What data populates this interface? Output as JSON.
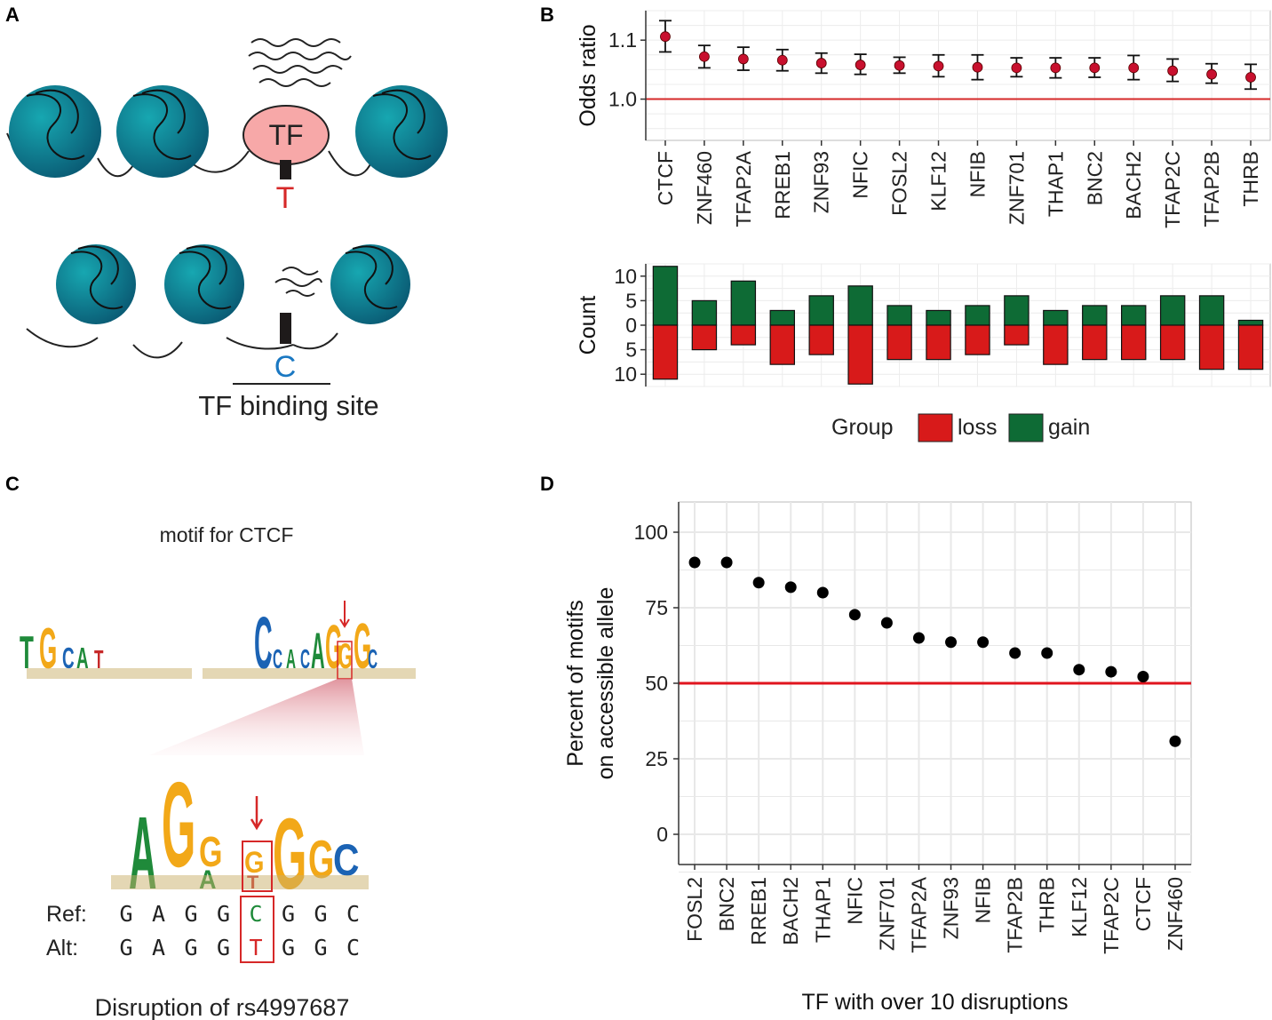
{
  "panels": {
    "a": "A",
    "b": "B",
    "c": "C",
    "d": "D"
  },
  "panelA": {
    "tf_label": "TF",
    "allele_top": "T",
    "allele_bottom": "C",
    "binding_site_label": "TF binding site",
    "colors": {
      "nucleosome": "#0f8a96",
      "tf": "#f7a8a8",
      "allele_t": "#d62828",
      "allele_c": "#1a78c2"
    }
  },
  "panelB": {
    "odds": {
      "type": "scatter",
      "ylabel": "Odds ratio",
      "ylim": [
        0.93,
        1.15
      ],
      "yticks": [
        1.0,
        1.1
      ],
      "ref_line": 1.0,
      "categories": [
        "CTCF",
        "ZNF460",
        "TFAP2A",
        "RREB1",
        "ZNF93",
        "NFIC",
        "FOSL2",
        "KLF12",
        "NFIB",
        "ZNF701",
        "THAP1",
        "BNC2",
        "BACH2",
        "TFAP2C",
        "TFAP2B",
        "THRB"
      ],
      "values": [
        1.106,
        1.072,
        1.068,
        1.066,
        1.061,
        1.058,
        1.057,
        1.056,
        1.054,
        1.053,
        1.053,
        1.053,
        1.053,
        1.048,
        1.042,
        1.037
      ],
      "lower": [
        1.08,
        1.053,
        1.049,
        1.048,
        1.044,
        1.042,
        1.044,
        1.038,
        1.033,
        1.038,
        1.036,
        1.037,
        1.033,
        1.03,
        1.027,
        1.017
      ],
      "upper": [
        1.133,
        1.091,
        1.088,
        1.084,
        1.078,
        1.076,
        1.071,
        1.075,
        1.075,
        1.07,
        1.07,
        1.07,
        1.074,
        1.068,
        1.06,
        1.059
      ]
    },
    "count": {
      "type": "bar",
      "ylabel": "Count",
      "ylim": [
        -12.5,
        12.5
      ],
      "yticks": [
        10,
        5,
        0,
        5,
        10
      ],
      "categories": [
        "CTCF",
        "ZNF460",
        "TFAP2A",
        "RREB1",
        "ZNF93",
        "NFIC",
        "FOSL2",
        "KLF12",
        "NFIB",
        "ZNF701",
        "THAP1",
        "BNC2",
        "BACH2",
        "TFAP2C",
        "TFAP2B",
        "THRB"
      ],
      "series": [
        {
          "name": "gain",
          "color": "#0e6b35",
          "values": [
            12,
            5,
            9,
            3,
            6,
            8,
            4,
            3,
            4,
            6,
            3,
            4,
            4,
            6,
            6,
            1
          ]
        },
        {
          "name": "loss",
          "color": "#d81a1a",
          "values": [
            11,
            5,
            4,
            8,
            6,
            12,
            7,
            7,
            6,
            4,
            8,
            7,
            7,
            7,
            9,
            9
          ]
        }
      ]
    },
    "legend": {
      "title": "Group",
      "items": [
        {
          "label": "loss",
          "color": "#d81a1a"
        },
        {
          "label": "gain",
          "color": "#0e6b35"
        }
      ]
    }
  },
  "panelC": {
    "title": "motif for CTCF",
    "ref_label": "Ref:",
    "alt_label": "Alt:",
    "ref_seq": [
      "G",
      "A",
      "G",
      "G",
      "C",
      "G",
      "G",
      "C"
    ],
    "alt_seq": [
      "G",
      "A",
      "G",
      "G",
      "T",
      "G",
      "G",
      "C"
    ],
    "caption": "Disruption of rs4997687"
  },
  "panelD": {
    "chart_data": {
      "type": "scatter",
      "xlabel": "TF with over 10 disruptions",
      "ylabel": [
        "Percent of motifs",
        "on accessible allele"
      ],
      "ylim": [
        -10,
        110
      ],
      "yticks": [
        0,
        25,
        50,
        75,
        100
      ],
      "ref_line": 50,
      "categories": [
        "FOSL2",
        "BNC2",
        "RREB1",
        "BACH2",
        "THAP1",
        "NFIC",
        "ZNF701",
        "TFAP2A",
        "ZNF93",
        "NFIB",
        "TFAP2B",
        "THRB",
        "KLF12",
        "TFAP2C",
        "CTCF",
        "ZNF460"
      ],
      "values": [
        90,
        90,
        83.3,
        81.8,
        80,
        72.7,
        70,
        65,
        63.6,
        63.6,
        60,
        60,
        54.5,
        53.8,
        52.2,
        30.8
      ]
    }
  }
}
